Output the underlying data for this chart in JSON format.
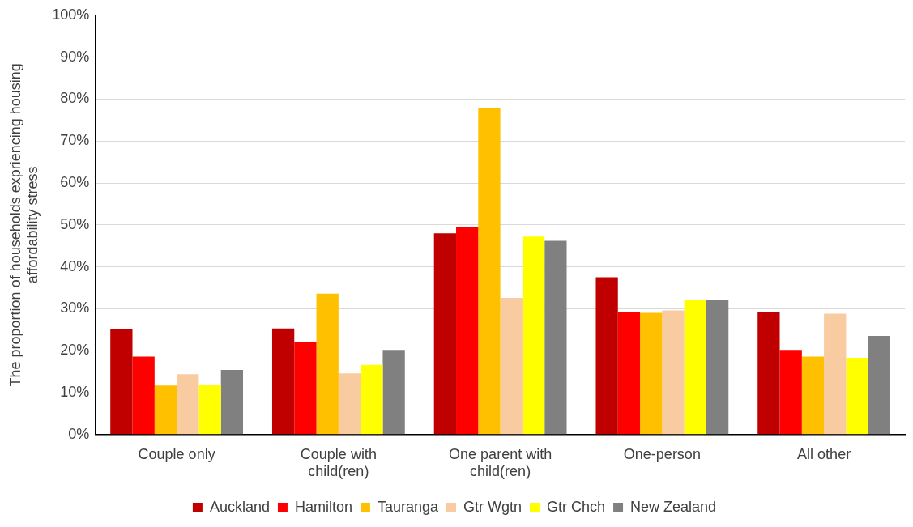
{
  "chart_data": {
    "type": "bar",
    "ylabel": "The proportion of households expriencing housing affordability stress",
    "categories": [
      "Couple only",
      "Couple with child(ren)",
      "One parent with child(ren)",
      "One-person",
      "All other"
    ],
    "series": [
      {
        "name": "Auckland",
        "color": "#c00000",
        "values": [
          25.1,
          25.3,
          48.0,
          37.5,
          29.2
        ]
      },
      {
        "name": "Hamilton",
        "color": "#ff0000",
        "values": [
          18.6,
          22.1,
          49.4,
          29.2,
          20.2
        ]
      },
      {
        "name": "Tauranga",
        "color": "#ffc000",
        "values": [
          11.7,
          33.6,
          77.9,
          29.0,
          18.6
        ]
      },
      {
        "name": "Gtr Wgtn",
        "color": "#f8cba0",
        "values": [
          14.4,
          14.6,
          32.6,
          29.6,
          28.8
        ]
      },
      {
        "name": "Gtr Chch",
        "color": "#ffff00",
        "values": [
          11.9,
          16.6,
          47.2,
          32.2,
          18.3
        ]
      },
      {
        "name": "New Zealand",
        "color": "#808080",
        "values": [
          15.4,
          20.2,
          46.2,
          32.2,
          23.5
        ]
      }
    ],
    "ylim": [
      0,
      100
    ],
    "yticks": [
      {
        "value": 0,
        "label": "0%"
      },
      {
        "value": 10,
        "label": "10%"
      },
      {
        "value": 20,
        "label": "20%"
      },
      {
        "value": 30,
        "label": "30%"
      },
      {
        "value": 40,
        "label": "40%"
      },
      {
        "value": 50,
        "label": "50%"
      },
      {
        "value": 60,
        "label": "60%"
      },
      {
        "value": 70,
        "label": "70%"
      },
      {
        "value": 80,
        "label": "80%"
      },
      {
        "value": 90,
        "label": "90%"
      },
      {
        "value": 100,
        "label": "100%"
      }
    ],
    "grid": "y",
    "legend": "bottom"
  }
}
